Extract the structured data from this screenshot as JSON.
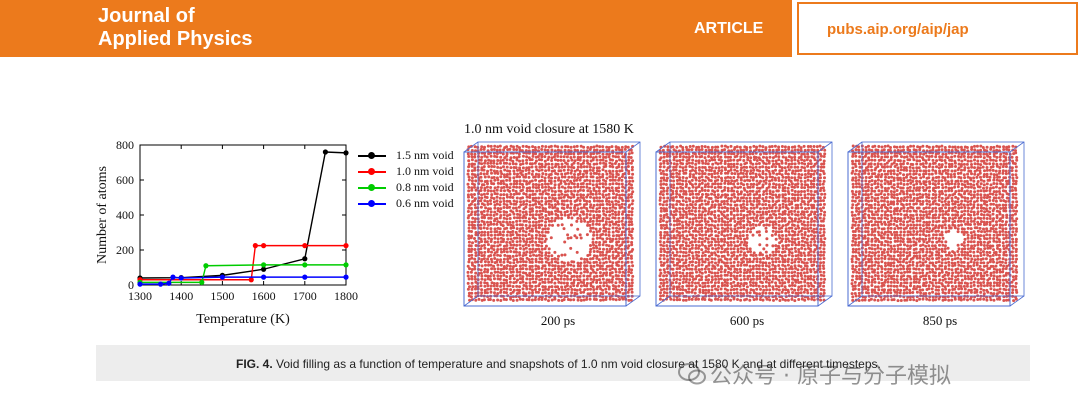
{
  "header": {
    "journal_line1": "Journal of",
    "journal_line2": "Applied Physics",
    "article_label": "ARTICLE",
    "url": "pubs.aip.org/aip/jap",
    "accent_color": "#ec7a1c"
  },
  "chart_data": {
    "type": "line",
    "xlabel": "Temperature (K)",
    "ylabel": "Number of atoms",
    "xlim": [
      1300,
      1800
    ],
    "ylim": [
      0,
      800
    ],
    "xticks": [
      1300,
      1400,
      1500,
      1600,
      1700,
      1800
    ],
    "yticks": [
      0,
      200,
      400,
      600,
      800
    ],
    "legend_position": "right",
    "series": [
      {
        "name": "1.5 nm void",
        "color": "#000000",
        "x": [
          1300,
          1400,
          1500,
          1600,
          1700,
          1750,
          1800
        ],
        "y": [
          40,
          42,
          55,
          90,
          150,
          760,
          755
        ]
      },
      {
        "name": "1.0 nm void",
        "color": "#ff0000",
        "x": [
          1300,
          1570,
          1580,
          1600,
          1700,
          1800
        ],
        "y": [
          30,
          30,
          225,
          225,
          225,
          225
        ]
      },
      {
        "name": "0.8 nm void",
        "color": "#00cc00",
        "x": [
          1300,
          1450,
          1460,
          1600,
          1700,
          1800
        ],
        "y": [
          15,
          15,
          110,
          115,
          115,
          115
        ]
      },
      {
        "name": "0.6 nm void",
        "color": "#0000ff",
        "x": [
          1300,
          1350,
          1370,
          1380,
          1400,
          1500,
          1600,
          1700,
          1800
        ],
        "y": [
          5,
          5,
          10,
          45,
          40,
          45,
          45,
          45,
          45
        ]
      }
    ]
  },
  "snapshots": {
    "title": "1.0 nm void closure at 1580 K",
    "labels": [
      "200 ps",
      "600 ps",
      "850 ps"
    ],
    "atom_color": "#d9534f"
  },
  "caption": {
    "fig_label": "FIG. 4.",
    "text": "Void filling as a function of temperature and snapshots of 1.0 nm void closure at 1580 K and at different timesteps."
  },
  "watermark": {
    "text": "公众号 · 原子与分子模拟"
  }
}
